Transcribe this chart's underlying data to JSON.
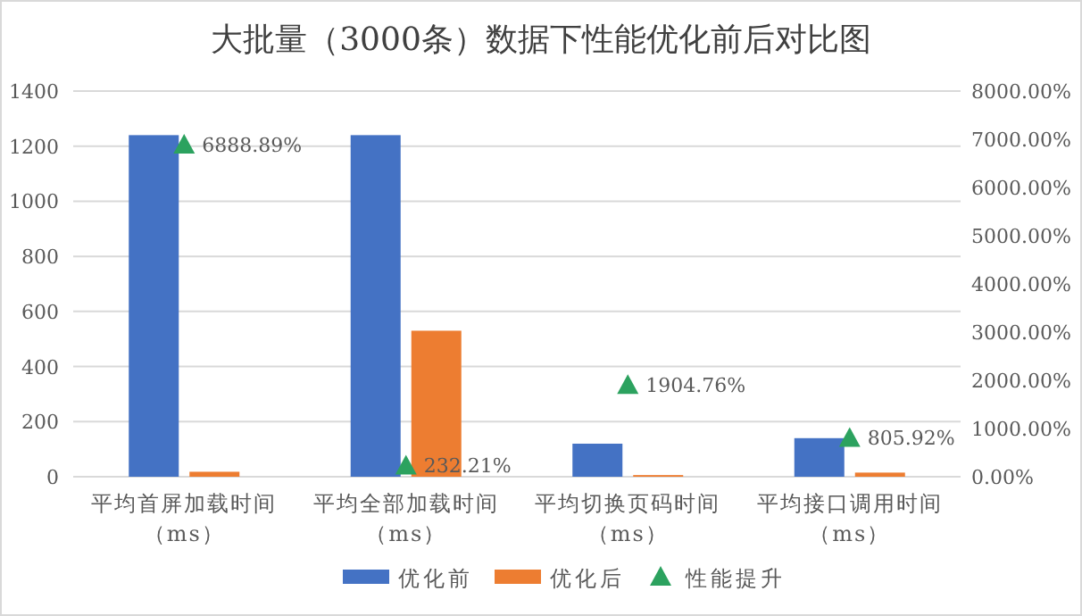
{
  "chart_data": {
    "type": "bar",
    "title": "大批量（3000条）数据下性能优化前后对比图",
    "categories": [
      "平均首屏加载时间（ms）",
      "平均全部加载时间（ms）",
      "平均切换页码时间（ms）",
      "平均接口调用时间（ms）"
    ],
    "series": [
      {
        "name": "优化前",
        "color": "#4472c4",
        "values": [
          1240,
          1240,
          120,
          140
        ]
      },
      {
        "name": "优化后",
        "color": "#ed7d31",
        "values": [
          18,
          530,
          6,
          15
        ]
      },
      {
        "name": "性能提升",
        "type": "scatter",
        "axis": "y2",
        "marker": "triangle",
        "color": "#2ca25f",
        "x": [
          "平均首屏加载时间（ms）",
          "平均全部加载时间（ms）",
          "平均切换页码时间（ms）",
          "平均接口调用时间（ms）"
        ],
        "values": [
          6888.89,
          232.21,
          1904.76,
          805.92
        ],
        "value_labels": [
          "6888.89%",
          "232.21%",
          "1904.76%",
          "805.92%"
        ]
      }
    ],
    "ylim": [
      0,
      1400
    ],
    "yticks": [
      0,
      200,
      400,
      600,
      800,
      1000,
      1200,
      1400
    ],
    "y2lim": [
      0,
      8000
    ],
    "y2ticks": [
      {
        "value": 0,
        "label": "0.00%"
      },
      {
        "value": 1000,
        "label": "1000.00%"
      },
      {
        "value": 2000,
        "label": "2000.00%"
      },
      {
        "value": 3000,
        "label": "3000.00%"
      },
      {
        "value": 4000,
        "label": "4000.00%"
      },
      {
        "value": 5000,
        "label": "5000.00%"
      },
      {
        "value": 6000,
        "label": "6000.00%"
      },
      {
        "value": 7000,
        "label": "7000.00%"
      },
      {
        "value": 8000,
        "label": "8000.00%"
      }
    ],
    "grid": "y",
    "legend": "bottom"
  }
}
